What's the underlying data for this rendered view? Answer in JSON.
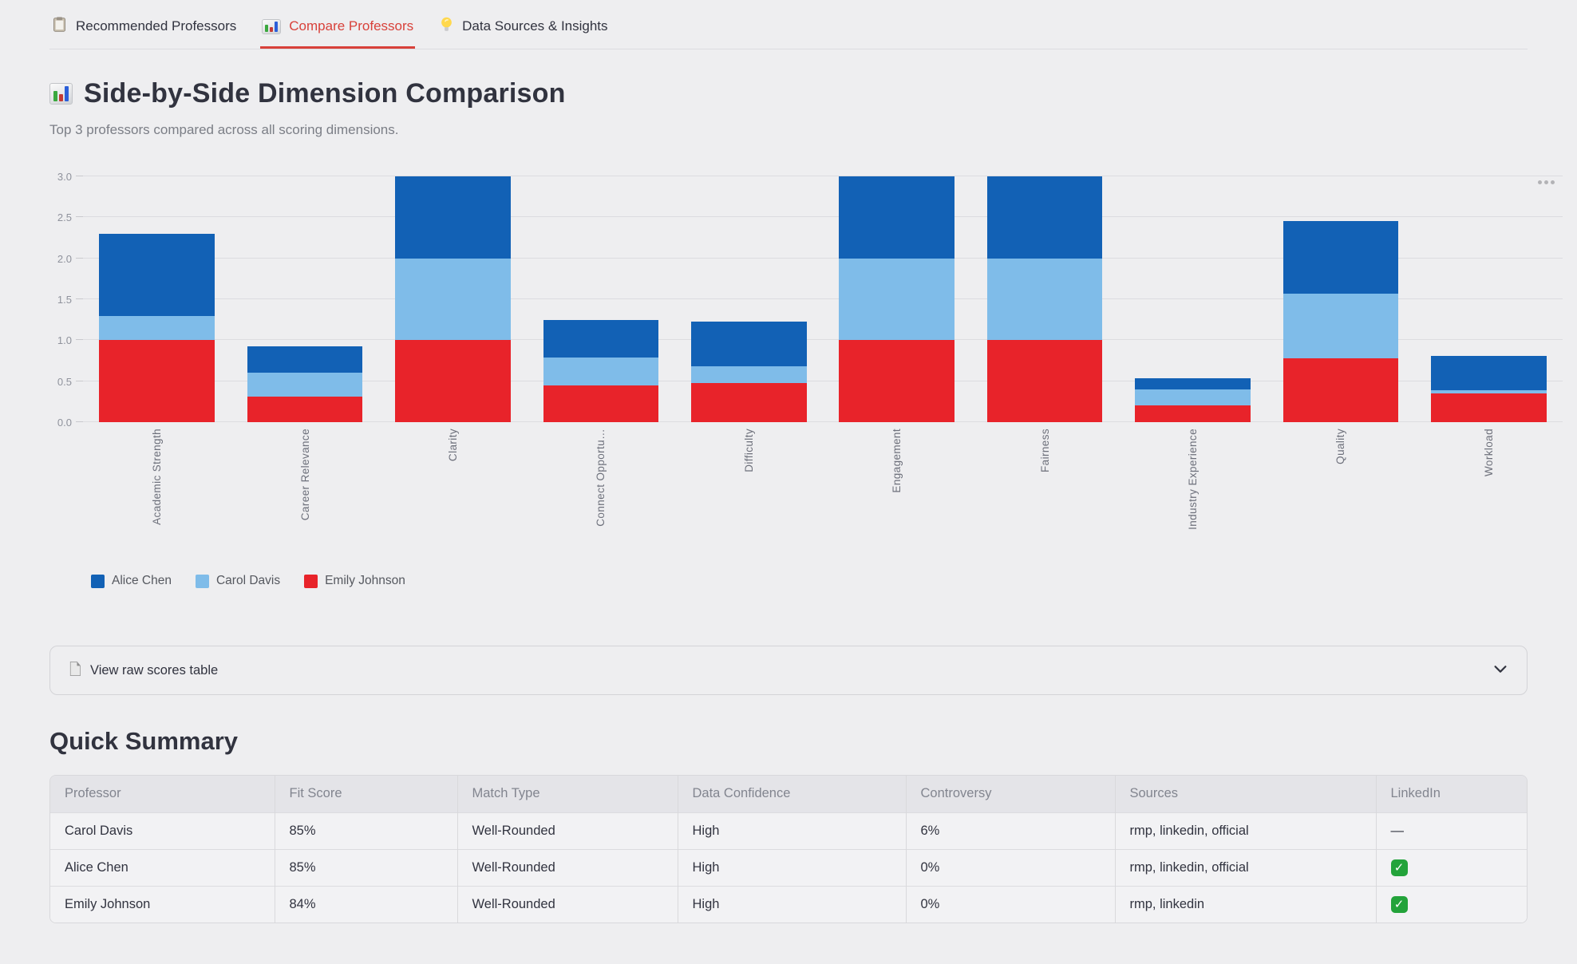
{
  "tabs": [
    {
      "label": "Recommended Professors",
      "icon": "clipboard-icon",
      "active": false
    },
    {
      "label": "Compare Professors",
      "icon": "bar-chart-icon",
      "active": true
    },
    {
      "label": "Data Sources & Insights",
      "icon": "lightbulb-icon",
      "active": false
    }
  ],
  "page": {
    "title": "Side-by-Side Dimension Comparison",
    "subtitle": "Top 3 professors compared across all scoring dimensions."
  },
  "chart_data": {
    "type": "bar",
    "stacked": true,
    "title": "",
    "xlabel": "",
    "ylabel": "",
    "ylim": [
      0,
      3
    ],
    "yticks": [
      "0.0",
      "0.5",
      "1.0",
      "1.5",
      "2.0",
      "2.5",
      "3.0"
    ],
    "grid": true,
    "legend_position": "bottom-left",
    "categories": [
      "Academic Strength",
      "Career Relevance",
      "Clarity",
      "Connect Opportu…",
      "Difficulty",
      "Engagement",
      "Fairness",
      "Industry Experience",
      "Quality",
      "Workload"
    ],
    "series": [
      {
        "name": "Alice Chen",
        "color": "#1261b5",
        "values": [
          1.0,
          0.33,
          1.0,
          0.46,
          0.55,
          1.0,
          1.0,
          0.14,
          0.88,
          0.42
        ]
      },
      {
        "name": "Carol Davis",
        "color": "#7fbce9",
        "values": [
          0.3,
          0.29,
          1.0,
          0.34,
          0.2,
          1.0,
          1.0,
          0.2,
          0.79,
          0.04
        ]
      },
      {
        "name": "Emily Johnson",
        "color": "#e8232a",
        "values": [
          1.0,
          0.31,
          1.0,
          0.45,
          0.48,
          1.0,
          1.0,
          0.2,
          0.78,
          0.35
        ]
      }
    ],
    "stack_order_bottom_to_top": [
      "Emily Johnson",
      "Carol Davis",
      "Alice Chen"
    ]
  },
  "chart_menu": {
    "more_options": "..."
  },
  "expander": {
    "label": "View raw scores table"
  },
  "summary": {
    "heading": "Quick Summary",
    "table": {
      "columns": [
        "Professor",
        "Fit Score",
        "Match Type",
        "Data Confidence",
        "Controversy",
        "Sources",
        "LinkedIn"
      ],
      "rows": [
        [
          "Carol Davis",
          "85%",
          "Well-Rounded",
          "High",
          "6%",
          "rmp, linkedin, official",
          "—"
        ],
        [
          "Alice Chen",
          "85%",
          "Well-Rounded",
          "High",
          "0%",
          "rmp, linkedin, official",
          "✅"
        ],
        [
          "Emily Johnson",
          "84%",
          "Well-Rounded",
          "High",
          "0%",
          "rmp, linkedin",
          "✅"
        ]
      ]
    }
  }
}
